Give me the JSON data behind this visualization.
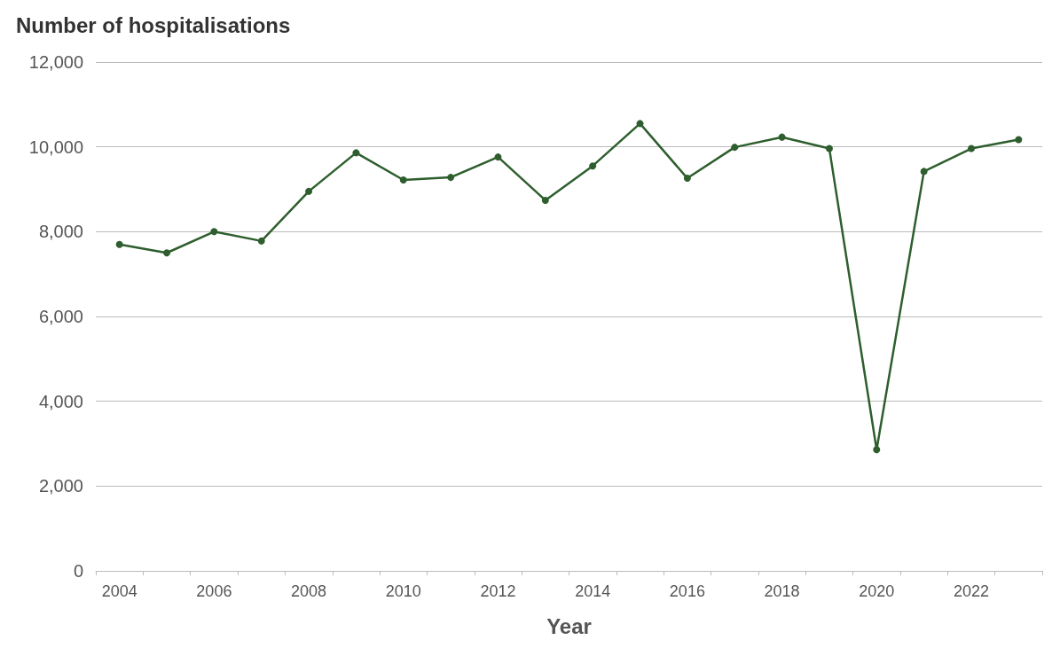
{
  "chart_data": {
    "type": "line",
    "ylabel": "Number of hospitalisations",
    "xlabel": "Year",
    "categories": [
      "2004",
      null,
      "2006",
      null,
      "2008",
      null,
      "2010",
      null,
      "2012",
      null,
      "2014",
      null,
      "2016",
      null,
      "2018",
      null,
      "2020",
      null,
      "2022",
      null
    ],
    "series": [
      {
        "color": "#2e5e2e",
        "values": [
          7700,
          7500,
          8000,
          7780,
          8950,
          9860,
          9220,
          9280,
          9760,
          8740,
          9550,
          10550,
          9260,
          9990,
          10230,
          9960,
          2860,
          9420,
          9960,
          10170
        ]
      }
    ],
    "ylim": [
      0,
      12000
    ],
    "yticks": [
      {
        "value": 0,
        "label": "0"
      },
      {
        "value": 2000,
        "label": "2,000"
      },
      {
        "value": 4000,
        "label": "4,000"
      },
      {
        "value": 6000,
        "label": "6,000"
      },
      {
        "value": 8000,
        "label": "8,000"
      },
      {
        "value": 10000,
        "label": "10,000"
      },
      {
        "value": 12000,
        "label": "12,000"
      }
    ],
    "grid": "y",
    "marker": "circle",
    "line_style": "solid"
  }
}
